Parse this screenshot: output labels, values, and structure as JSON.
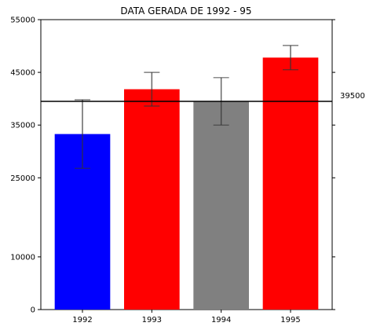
{
  "chart_data": {
    "type": "bar",
    "title": "DATA GERADA DE 1992 - 95",
    "xlabel": "",
    "ylabel": "",
    "categories": [
      "1992",
      "1993",
      "1994",
      "1995"
    ],
    "values": [
      33300,
      41800,
      39500,
      47800
    ],
    "errors": [
      6500,
      3200,
      4500,
      2300
    ],
    "bar_colors": [
      "#0000ff",
      "#ff0000",
      "#808080",
      "#ff0000"
    ],
    "reference_line": {
      "value": 39500,
      "label": "39500",
      "color": "#000000"
    },
    "yticks": [
      0,
      10000,
      25000,
      35000,
      45000,
      55000
    ],
    "ytick_labels": [
      "0",
      "10000",
      "25000",
      "35000",
      "45000",
      "55000"
    ],
    "ylim": [
      0,
      55000
    ],
    "grid": false,
    "legend": false
  }
}
